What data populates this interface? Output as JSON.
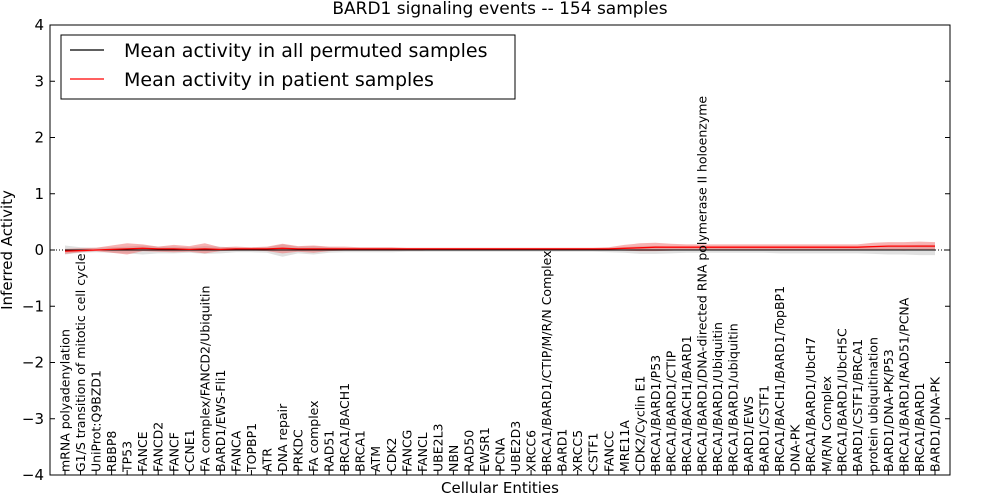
{
  "chart_data": {
    "type": "line",
    "title": "BARD1 signaling events -- 154 samples",
    "xlabel": "Cellular Entities",
    "ylabel": "Inferred Activity",
    "ylim": [
      -4,
      4
    ],
    "yticks": [
      -4,
      -3,
      -2,
      -1,
      0,
      1,
      2,
      3,
      4
    ],
    "ytick_labels": [
      "−4",
      "−3",
      "−2",
      "−1",
      "0",
      "1",
      "2",
      "3",
      "4"
    ],
    "legend": {
      "placement": "top-left",
      "entries": [
        {
          "label": "Mean activity in all permuted samples",
          "color": "#000000"
        },
        {
          "label": "Mean activity in patient samples",
          "color": "#ff0000"
        }
      ]
    },
    "categories": [
      "mRNA polyadenylation",
      "G1/S transition of mitotic cell cycle",
      "UniProt:Q9BZD1",
      "RBBP8",
      "TP53",
      "FANCE",
      "FANCD2",
      "FANCF",
      "CCNE1",
      "FA complex/FANCD2/Ubiquitin",
      "BARD1/EWS-Fli1",
      "FANCA",
      "TOPBP1",
      "ATR",
      "DNA repair",
      "PRKDC",
      "FA complex",
      "RAD51",
      "BRCA1/BACH1",
      "BRCA1",
      "ATM",
      "CDK2",
      "FANCG",
      "FANCL",
      "UBE2L3",
      "NBN",
      "RAD50",
      "EWSR1",
      "PCNA",
      "UBE2D3",
      "XRCC6",
      "BRCA1/BARD1/CTIP/M/R/N Complex",
      "BARD1",
      "XRCC5",
      "CSTF1",
      "FANCC",
      "MRE11A",
      "CDK2/Cyclin E1",
      "BRCA1/BARD1/P53",
      "BRCA1/BARD1/CTIP",
      "BRCA1/BACH1/BARD1",
      "BRCA1/BARD1/DNA-directed RNA polymerase II holoenzyme",
      "BRCA1/BARD1/Ubiquitin",
      "BRCA1/BARD1/ubiquitin",
      "BARD1/EWS",
      "BARD1/CSTF1",
      "BRCA1/BACH1/BARD1/TopBP1",
      "DNA-PK",
      "BRCA1/BARD1/UbcH7",
      "M/R/N Complex",
      "BRCA1/BARD1/UbcH5C",
      "BARD1/CSTF1/BRCA1",
      "protein ubiquitination",
      "BARD1/DNA-PK/P53",
      "BRCA1/BARD1/RAD51/PCNA",
      "BRCA1/BARD1",
      "BARD1/DNA-PK"
    ],
    "series": [
      {
        "name": "Mean activity in all permuted samples",
        "color": "#000000",
        "values": [
          0.0,
          0.0,
          0.0,
          0.0,
          0.0,
          0.0,
          0.0,
          0.0,
          0.0,
          0.0,
          0.0,
          0.0,
          0.0,
          0.0,
          0.0,
          0.0,
          0.0,
          0.0,
          0.0,
          0.0,
          0.0,
          0.0,
          0.0,
          0.0,
          0.0,
          0.0,
          0.0,
          0.0,
          0.0,
          0.0,
          0.0,
          0.0,
          0.0,
          0.0,
          0.0,
          0.0,
          0.0,
          0.0,
          0.0,
          0.0,
          0.0,
          0.0,
          0.0,
          0.0,
          0.0,
          0.0,
          0.0,
          0.0,
          0.0,
          0.0,
          0.0,
          0.0,
          0.0,
          0.0,
          0.0,
          0.0,
          0.0
        ],
        "band_lower": [
          -0.08,
          -0.05,
          -0.04,
          -0.05,
          -0.06,
          -0.08,
          -0.06,
          -0.06,
          -0.05,
          -0.07,
          -0.06,
          -0.04,
          -0.04,
          -0.05,
          -0.12,
          -0.06,
          -0.08,
          -0.05,
          -0.04,
          -0.04,
          -0.04,
          -0.04,
          -0.03,
          -0.03,
          -0.03,
          -0.03,
          -0.03,
          -0.03,
          -0.03,
          -0.03,
          -0.03,
          -0.03,
          -0.03,
          -0.03,
          -0.03,
          -0.04,
          -0.05,
          -0.07,
          -0.07,
          -0.06,
          -0.05,
          -0.05,
          -0.05,
          -0.05,
          -0.05,
          -0.05,
          -0.06,
          -0.06,
          -0.06,
          -0.06,
          -0.06,
          -0.06,
          -0.07,
          -0.08,
          -0.08,
          -0.09,
          -0.09
        ],
        "band_upper": [
          0.08,
          0.05,
          0.04,
          0.05,
          0.06,
          0.08,
          0.06,
          0.06,
          0.05,
          0.07,
          0.06,
          0.04,
          0.04,
          0.05,
          0.1,
          0.06,
          0.07,
          0.05,
          0.04,
          0.04,
          0.04,
          0.04,
          0.03,
          0.03,
          0.03,
          0.03,
          0.03,
          0.03,
          0.03,
          0.03,
          0.03,
          0.03,
          0.03,
          0.03,
          0.03,
          0.04,
          0.05,
          0.07,
          0.07,
          0.06,
          0.05,
          0.05,
          0.05,
          0.05,
          0.05,
          0.05,
          0.06,
          0.06,
          0.06,
          0.06,
          0.06,
          0.06,
          0.07,
          0.08,
          0.08,
          0.09,
          0.09
        ]
      },
      {
        "name": "Mean activity in patient samples",
        "color": "#ff0000",
        "values": [
          -0.02,
          -0.01,
          0.0,
          0.01,
          0.02,
          0.03,
          0.02,
          0.02,
          0.01,
          0.02,
          0.01,
          0.02,
          0.02,
          0.02,
          0.03,
          0.02,
          0.02,
          0.02,
          0.02,
          0.02,
          0.02,
          0.02,
          0.02,
          0.02,
          0.02,
          0.02,
          0.02,
          0.02,
          0.02,
          0.02,
          0.02,
          0.02,
          0.02,
          0.02,
          0.02,
          0.02,
          0.03,
          0.04,
          0.05,
          0.05,
          0.05,
          0.05,
          0.05,
          0.05,
          0.05,
          0.05,
          0.05,
          0.05,
          0.05,
          0.05,
          0.05,
          0.05,
          0.06,
          0.07,
          0.07,
          0.07,
          0.07
        ],
        "band_lower": [
          -0.07,
          -0.04,
          -0.02,
          -0.05,
          -0.08,
          -0.02,
          -0.03,
          -0.04,
          -0.03,
          -0.06,
          -0.02,
          -0.01,
          -0.01,
          -0.02,
          -0.06,
          -0.03,
          -0.05,
          -0.02,
          -0.01,
          -0.01,
          -0.01,
          -0.01,
          -0.01,
          -0.01,
          0.0,
          0.0,
          0.0,
          0.0,
          0.0,
          0.0,
          0.0,
          0.0,
          0.0,
          0.0,
          0.0,
          0.0,
          -0.01,
          -0.02,
          -0.02,
          -0.01,
          0.0,
          0.0,
          0.0,
          0.0,
          0.0,
          0.0,
          0.0,
          0.0,
          0.0,
          0.0,
          0.0,
          0.0,
          0.0,
          0.0,
          -0.01,
          0.0,
          -0.01
        ],
        "band_upper": [
          0.02,
          0.03,
          0.04,
          0.08,
          0.12,
          0.1,
          0.06,
          0.09,
          0.07,
          0.12,
          0.05,
          0.06,
          0.05,
          0.06,
          0.11,
          0.07,
          0.08,
          0.06,
          0.06,
          0.05,
          0.05,
          0.05,
          0.04,
          0.04,
          0.04,
          0.04,
          0.04,
          0.04,
          0.04,
          0.04,
          0.04,
          0.04,
          0.04,
          0.04,
          0.04,
          0.05,
          0.09,
          0.12,
          0.13,
          0.11,
          0.1,
          0.1,
          0.1,
          0.1,
          0.1,
          0.1,
          0.1,
          0.1,
          0.1,
          0.1,
          0.1,
          0.1,
          0.13,
          0.14,
          0.14,
          0.15,
          0.14
        ]
      }
    ]
  }
}
